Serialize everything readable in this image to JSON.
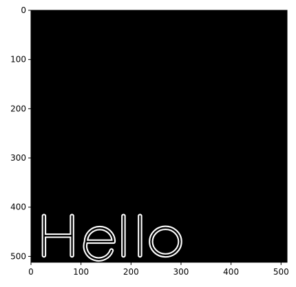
{
  "chart_data": {
    "type": "image",
    "image": {
      "width": 512,
      "height": 512,
      "background": "#000000",
      "foreground": "#ffffff",
      "rendered_text": "Hello",
      "stroke": "outline"
    },
    "x_axis": {
      "range": [
        0,
        512
      ],
      "ticks": [
        0,
        100,
        200,
        300,
        400,
        500
      ],
      "tick_labels": [
        "0",
        "100",
        "200",
        "300",
        "400",
        "500"
      ]
    },
    "y_axis": {
      "range": [
        0,
        512
      ],
      "inverted": true,
      "ticks": [
        0,
        100,
        200,
        300,
        400,
        500
      ],
      "tick_labels": [
        "0",
        "100",
        "200",
        "300",
        "400",
        "500"
      ]
    },
    "grid": false,
    "title": "",
    "xlabel": "",
    "ylabel": ""
  }
}
